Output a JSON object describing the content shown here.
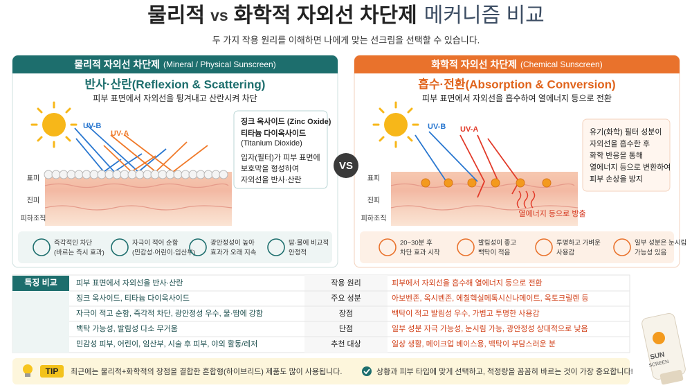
{
  "header": {
    "title_parts": [
      "물리적",
      "vs",
      "화학적 자외선 차단제",
      "메커니즘 비교"
    ],
    "subtitle": "두 가지 작용 원리를 이해하면 나에게 맞는 선크림을 선택할 수 있습니다."
  },
  "mineral": {
    "name": "물리적 자외선 차단제",
    "name_en": "(Mineral / Physical Sunscreen)",
    "heading": "반사·산란(Reflexion & Scattering)",
    "description": "피부 표면에서 자외선을 튕겨내고 산란시켜 차단",
    "rays": [
      "UV-B",
      "UV-A"
    ],
    "layers": [
      "표피",
      "진피",
      "피하조직"
    ],
    "info": [
      "징크 옥사이드 (Zinc Oxide)",
      "티타늄 다이옥사이드",
      "(Titanium Dioxide)",
      "입자(필터)가 피부 표면에",
      "보호막을 형성하여",
      "자외선을 반사·산란"
    ],
    "features": [
      [
        "즉각적인 차단",
        "(바르는 즉시 효과)"
      ],
      [
        "자극이 적어 순함",
        "(민감성·어린이·임산부)"
      ],
      [
        "광안정성이 높아",
        "효과가 오래 지속"
      ],
      [
        "땀·물에 비교적",
        "안정적"
      ]
    ]
  },
  "vs": "VS",
  "chemical": {
    "name": "화학적 자외선 차단제",
    "name_en": "(Chemical Sunscreen)",
    "heading": "흡수·전환(Absorption & Conversion)",
    "description": "피부 표면에서 자외선을 흡수하여 열에너지 등으로 전환",
    "rays": [
      "UV-B",
      "UV-A"
    ],
    "layers": [
      "표피",
      "진피",
      "피하조직"
    ],
    "heat_label": "열에너지 등으로 방출",
    "info": [
      "유기(화학) 필터 성분이",
      "자외선을 흡수한 후",
      "화학 반응을 통해",
      "열에너지 등으로 변환하여",
      "피부 손상을 방지"
    ],
    "features": [
      [
        "20~30분 후",
        "차단 효과 시작"
      ],
      [
        "발림성이 좋고",
        "백탁이 적음"
      ],
      [
        "투명하고 가벼운",
        "사용감"
      ],
      [
        "일부 성분은 눈시림",
        "가능성 있음"
      ]
    ]
  },
  "comparison": {
    "label": "특징 비교",
    "rows": [
      [
        "피부 표면에서 자외선을 반사·산란",
        "작용 원리",
        "피부에서 자외선을 흡수해 열에너지 등으로 전환"
      ],
      [
        "징크 옥사이드, 티타늄 다이옥사이드",
        "주요 성분",
        "아보벤존, 옥시벤존, 에칠헥실메톡시신나메이트, 옥토크릴렌 등"
      ],
      [
        "자극이 적고 순함, 즉각적 차단, 광안정성 우수, 물·땀에 강함",
        "장점",
        "백탁이 적고 발림성 우수, 가볍고 투명한 사용감"
      ],
      [
        "백탁 가능성, 발림성 다소 무거움",
        "단점",
        "일부 성분 자극 가능성, 눈시림 가능, 광안정성 상대적으로 낮음"
      ],
      [
        "민감성 피부, 어린이, 임산부, 시술 후 피부, 야외 활동/레저",
        "추천 대상",
        "일상 생활, 메이크업 베이스용, 백탁이 부담스러운 분"
      ]
    ]
  },
  "tip": {
    "badge": "TIP",
    "text": "최근에는 물리적+화학적의 장점을 결합한 혼합형(하이브리드) 제품도 많이 사용됩니다.",
    "note": "상황과 피부 타입에 맞게 선택하고, 적정량을 꼼꼼히 바르는 것이 가장 중요합니다!"
  },
  "product": {
    "lines": [
      "SUN",
      "SCREEN"
    ]
  }
}
